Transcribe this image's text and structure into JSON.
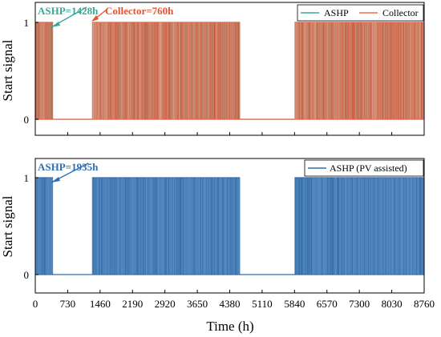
{
  "chart_data": [
    {
      "type": "line",
      "panel": "top",
      "ylabel": "Start signal",
      "yticks": [
        "0",
        "1"
      ],
      "xlim": [
        0,
        8760
      ],
      "ylim": [
        -0.2,
        1.05
      ],
      "series": [
        {
          "name": "ASHP",
          "color": "#3aa89a",
          "operating_hours": 1428,
          "on_periods": [
            [
              0,
              400
            ],
            [
              1280,
              4610
            ],
            [
              5840,
              8760
            ]
          ]
        },
        {
          "name": "Collector",
          "color": "#ee6a4a",
          "operating_hours": 760,
          "on_periods": [
            [
              0,
              400
            ],
            [
              1280,
              4610
            ],
            [
              5840,
              8760
            ]
          ]
        }
      ],
      "annotations": [
        {
          "text": "ASHP=1428h",
          "color": "#3aa89a"
        },
        {
          "text": "Collector=760h",
          "color": "#e8532f"
        }
      ],
      "legend": {
        "position": "top-right",
        "entries": [
          "ASHP",
          "Collector"
        ]
      }
    },
    {
      "type": "line",
      "panel": "bottom",
      "xlabel": "Time (h)",
      "ylabel": "Start signal",
      "xticks": [
        "0",
        "730",
        "1460",
        "2190",
        "2920",
        "3650",
        "4380",
        "5110",
        "5840",
        "6570",
        "7300",
        "8030",
        "8760"
      ],
      "yticks": [
        "0",
        "1"
      ],
      "xlim": [
        0,
        8760
      ],
      "ylim": [
        -0.2,
        1.05
      ],
      "series": [
        {
          "name": "ASHP (PV assisted)",
          "color": "#2f6fb0",
          "operating_hours": 1935,
          "on_periods": [
            [
              0,
              400
            ],
            [
              1280,
              4610
            ],
            [
              5840,
              8760
            ]
          ]
        }
      ],
      "annotations": [
        {
          "text": "ASHP=1935h",
          "color": "#2f6fb0"
        }
      ],
      "legend": {
        "position": "top-right",
        "entries": [
          "ASHP (PV assisted)"
        ]
      }
    }
  ]
}
